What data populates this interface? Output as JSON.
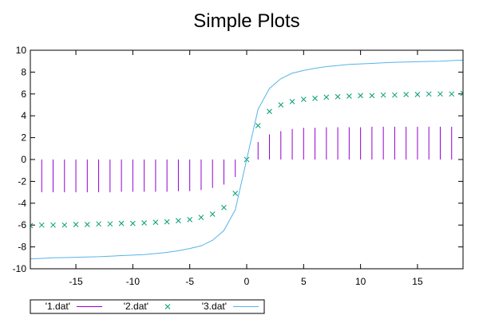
{
  "chart_data": {
    "type": "line",
    "title": "Simple Plots",
    "xlabel": "",
    "ylabel": "",
    "xlim": [
      -19,
      19
    ],
    "ylim": [
      -10,
      10
    ],
    "x_ticks": [
      -15,
      -10,
      -5,
      0,
      5,
      10,
      15
    ],
    "y_ticks": [
      -10,
      -8,
      -6,
      -4,
      -2,
      0,
      2,
      4,
      6,
      8,
      10
    ],
    "legend_position": "bottom-left",
    "series": [
      {
        "name": "'1.dat'",
        "style": "impulses",
        "color": "#9400d3",
        "x": [
          -18,
          -17,
          -16,
          -15,
          -14,
          -13,
          -12,
          -11,
          -10,
          -9,
          -8,
          -7,
          -6,
          -5,
          -4,
          -3,
          -2,
          -1,
          0,
          1,
          2,
          3,
          4,
          5,
          6,
          7,
          8,
          9,
          10,
          11,
          12,
          13,
          14,
          15,
          16,
          17,
          18
        ],
        "y": [
          -3.0,
          -3.0,
          -3.0,
          -3.0,
          -3.0,
          -3.0,
          -3.0,
          -2.95,
          -2.95,
          -2.95,
          -2.95,
          -2.95,
          -2.9,
          -2.9,
          -2.8,
          -2.6,
          -2.3,
          -1.6,
          0,
          1.6,
          2.3,
          2.6,
          2.8,
          2.9,
          2.9,
          2.95,
          2.95,
          2.95,
          2.95,
          3.0,
          3.0,
          3.0,
          3.0,
          3.0,
          3.0,
          3.0,
          3.0
        ]
      },
      {
        "name": "'2.dat'",
        "style": "points",
        "marker": "x",
        "color": "#009e73",
        "x": [
          -19,
          -18,
          -17,
          -16,
          -15,
          -14,
          -13,
          -12,
          -11,
          -10,
          -9,
          -8,
          -7,
          -6,
          -5,
          -4,
          -3,
          -2,
          -1,
          0,
          1,
          2,
          3,
          4,
          5,
          6,
          7,
          8,
          9,
          10,
          11,
          12,
          13,
          14,
          15,
          16,
          17,
          18,
          19
        ],
        "y": [
          -6.05,
          -6.0,
          -6.0,
          -6.0,
          -5.95,
          -5.95,
          -5.9,
          -5.9,
          -5.85,
          -5.85,
          -5.8,
          -5.75,
          -5.7,
          -5.6,
          -5.5,
          -5.3,
          -5.0,
          -4.4,
          -3.1,
          0,
          3.1,
          4.4,
          5.0,
          5.3,
          5.5,
          5.6,
          5.7,
          5.75,
          5.8,
          5.85,
          5.85,
          5.9,
          5.9,
          5.95,
          5.95,
          6.0,
          6.0,
          6.0,
          6.05
        ]
      },
      {
        "name": "'3.dat'",
        "style": "lines",
        "color": "#56b4e9",
        "x": [
          -19,
          -18,
          -17,
          -16,
          -15,
          -14,
          -13,
          -12,
          -11,
          -10,
          -9,
          -8,
          -7,
          -6,
          -5,
          -4,
          -3,
          -2,
          -1,
          0,
          1,
          2,
          3,
          4,
          5,
          6,
          7,
          8,
          9,
          10,
          11,
          12,
          13,
          14,
          15,
          16,
          17,
          18,
          19
        ],
        "y": [
          -9.1,
          -9.05,
          -9.0,
          -8.98,
          -8.95,
          -8.92,
          -8.9,
          -8.85,
          -8.8,
          -8.75,
          -8.7,
          -8.6,
          -8.5,
          -8.35,
          -8.15,
          -7.9,
          -7.4,
          -6.5,
          -4.6,
          0,
          4.6,
          6.5,
          7.4,
          7.9,
          8.15,
          8.35,
          8.5,
          8.6,
          8.7,
          8.75,
          8.8,
          8.85,
          8.9,
          8.92,
          8.95,
          8.98,
          9.0,
          9.05,
          9.1
        ]
      }
    ]
  }
}
